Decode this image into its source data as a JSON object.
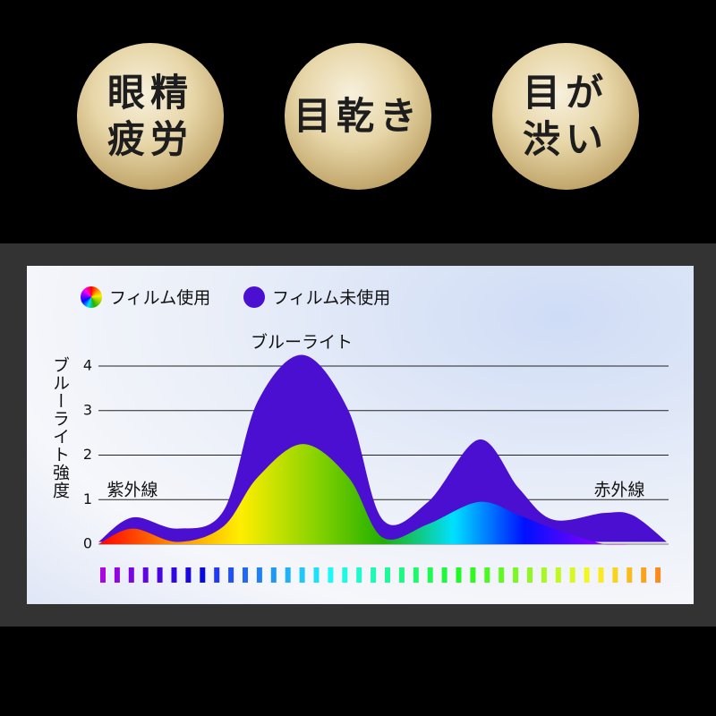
{
  "badges": [
    {
      "lines": [
        "眼精",
        "疲労"
      ]
    },
    {
      "lines": [
        "目乾き"
      ]
    },
    {
      "lines": [
        "目が",
        "渋い"
      ]
    }
  ],
  "chart_data": {
    "type": "area",
    "y_label": "ブルーライト強度",
    "annotations": [
      "ブルーライト",
      "紫外線",
      "赤外線"
    ],
    "x": [
      0,
      6,
      14,
      22,
      28,
      36,
      44,
      50,
      58,
      67,
      74,
      80,
      89,
      94,
      100
    ],
    "xlim": [
      0,
      100
    ],
    "ylim": [
      0,
      4
    ],
    "yticks": [
      0,
      1,
      2,
      3,
      4
    ],
    "grid": true,
    "series": [
      {
        "name": "フィルム使用",
        "colors": [
          "#ff0000",
          "#ff8800",
          "#ffee00",
          "#8fd400",
          "#22b000",
          "#00e0ff",
          "#0010ff",
          "#8000ff",
          "#ff00ff"
        ],
        "values": [
          0,
          0.35,
          0.05,
          0.4,
          1.5,
          2.25,
          1.5,
          0.15,
          0.45,
          0.95,
          0.65,
          0.35,
          0,
          0,
          0
        ]
      },
      {
        "name": "フィルム未使用",
        "color": "#4a0fd0",
        "values": [
          0.05,
          0.6,
          0.35,
          0.75,
          3.2,
          4.25,
          3,
          0.55,
          0.95,
          2.35,
          1.25,
          0.55,
          0.7,
          0.65,
          0.05
        ]
      }
    ]
  }
}
